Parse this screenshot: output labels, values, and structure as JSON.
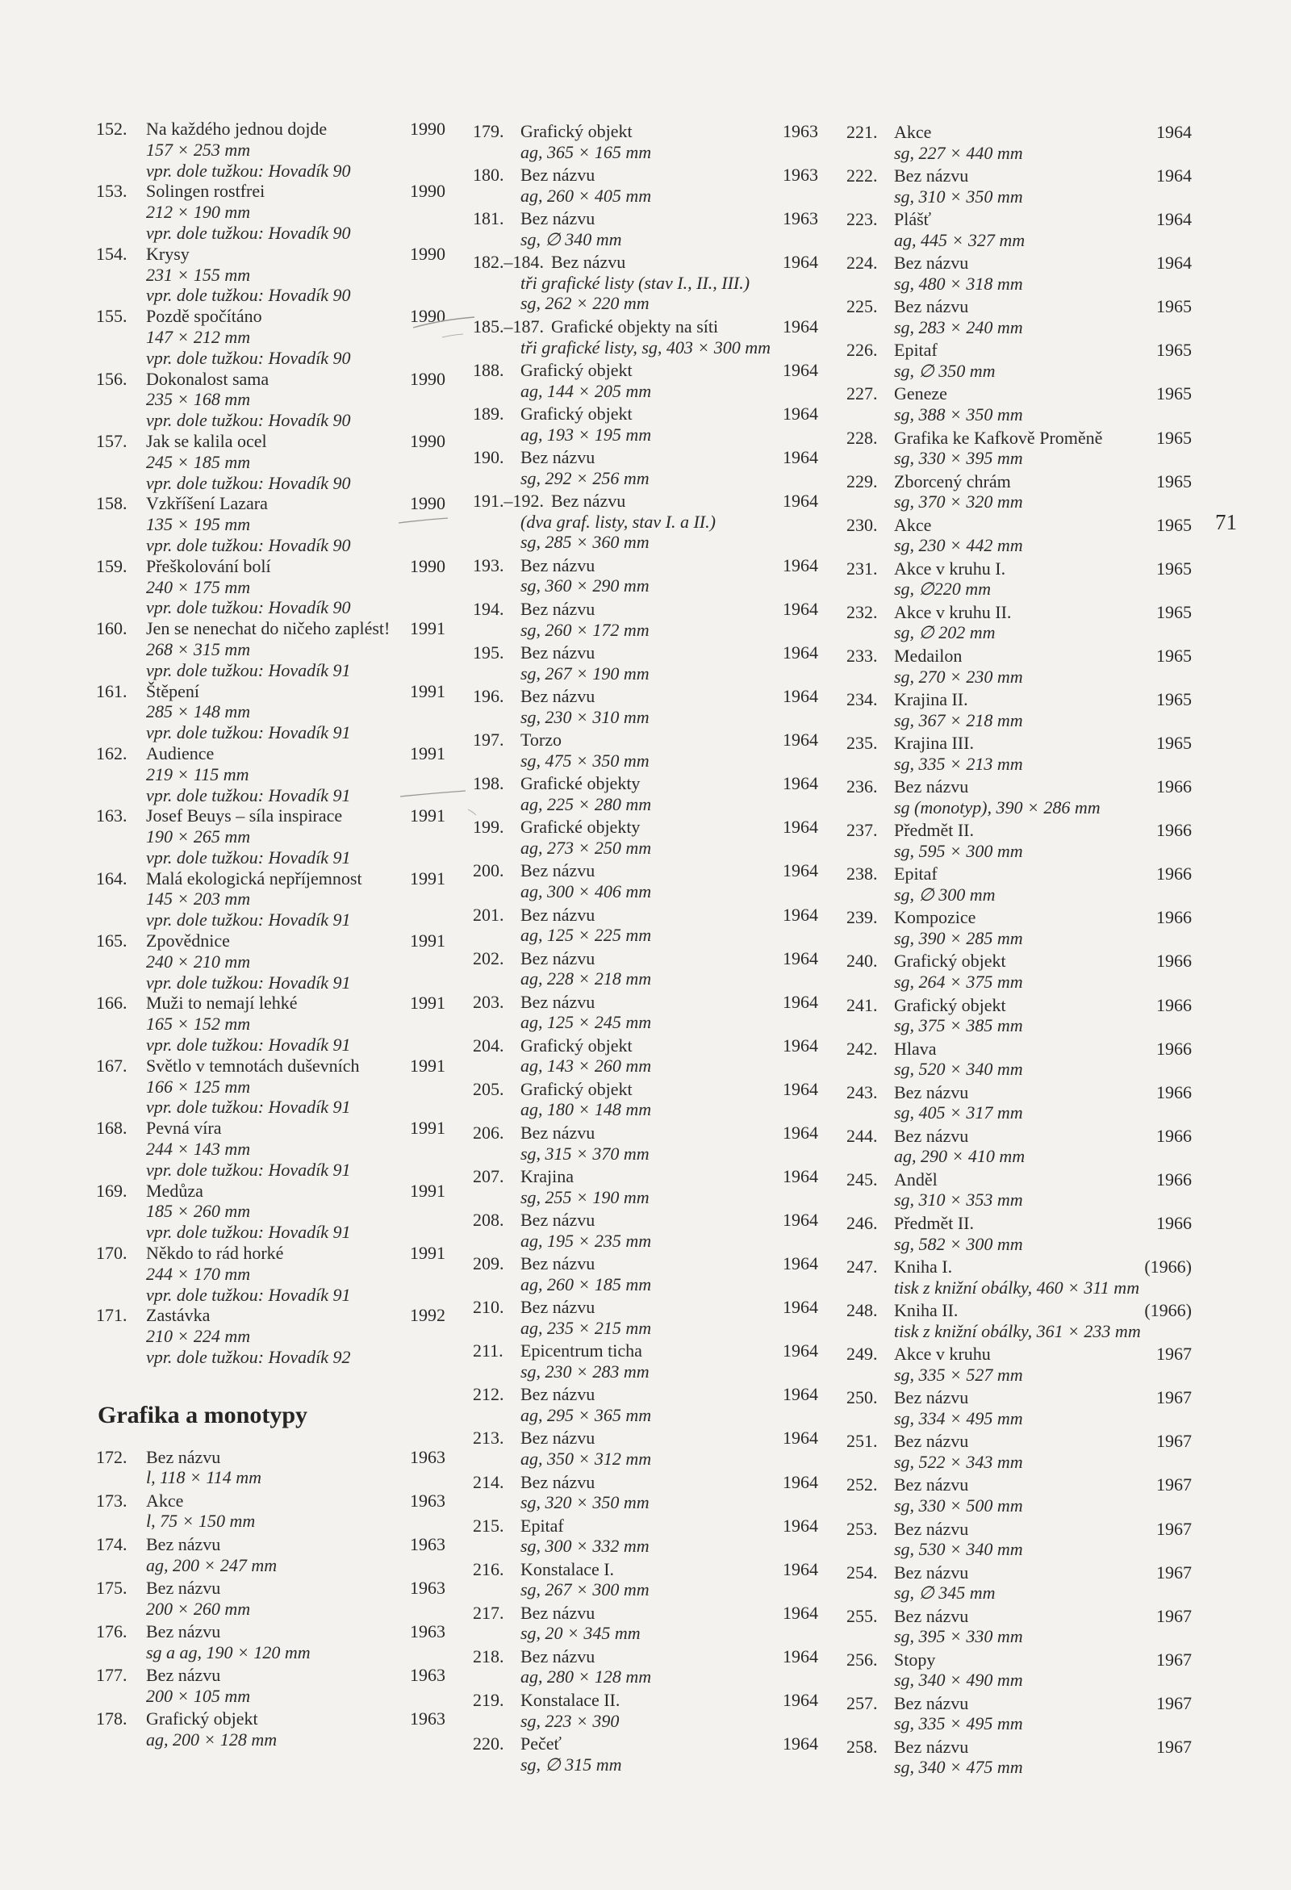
{
  "page_number": "71",
  "columns": [
    {
      "items": [
        {
          "num": "152.",
          "title": "Na každého jednou dojde",
          "year": "1990",
          "lines": [
            "157 × 253 mm",
            "vpr. dole tužkou: Hovadík 90"
          ]
        },
        {
          "num": "153.",
          "title": "Solingen rostfrei",
          "year": "1990",
          "lines": [
            "212 × 190 mm",
            "vpr. dole tužkou: Hovadík 90"
          ]
        },
        {
          "num": "154.",
          "title": "Krysy",
          "year": "1990",
          "lines": [
            "231 × 155 mm",
            "vpr. dole tužkou: Hovadík 90"
          ]
        },
        {
          "num": "155.",
          "title": "Pozdě spočítáno",
          "year": "1990",
          "lines": [
            "147 × 212 mm",
            "vpr. dole tužkou: Hovadík 90"
          ]
        },
        {
          "num": "156.",
          "title": "Dokonalost sama",
          "year": "1990",
          "lines": [
            "235 × 168 mm",
            "vpr. dole tužkou: Hovadík 90"
          ]
        },
        {
          "num": "157.",
          "title": "Jak se kalila ocel",
          "year": "1990",
          "lines": [
            "245 × 185 mm",
            "vpr. dole tužkou: Hovadík 90"
          ]
        },
        {
          "num": "158.",
          "title": "Vzkříšení Lazara",
          "year": "1990",
          "lines": [
            "135 × 195 mm",
            "vpr. dole tužkou: Hovadík 90"
          ]
        },
        {
          "num": "159.",
          "title": "Přeškolování bolí",
          "year": "1990",
          "lines": [
            "240 × 175 mm",
            "vpr. dole tužkou: Hovadík 90"
          ]
        },
        {
          "num": "160.",
          "title": "Jen se nenechat do ničeho zaplést!",
          "year": "1991",
          "lines": [
            "268 × 315 mm",
            "vpr. dole tužkou: Hovadík 91"
          ]
        },
        {
          "num": "161.",
          "title": "Štěpení",
          "year": "1991",
          "lines": [
            "285 × 148 mm",
            "vpr. dole tužkou: Hovadík 91"
          ]
        },
        {
          "num": "162.",
          "title": "Audience",
          "year": "1991",
          "lines": [
            "219 × 115 mm",
            "vpr. dole tužkou: Hovadík 91"
          ]
        },
        {
          "num": "163.",
          "title": "Josef Beuys – síla inspirace",
          "year": "1991",
          "lines": [
            "190 × 265 mm",
            "vpr. dole tužkou: Hovadík 91"
          ]
        },
        {
          "num": "164.",
          "title": "Malá ekologická nepříjemnost",
          "year": "1991",
          "lines": [
            "145 × 203 mm",
            "vpr. dole tužkou: Hovadík 91"
          ]
        },
        {
          "num": "165.",
          "title": "Zpovědnice",
          "year": "1991",
          "lines": [
            "240 × 210 mm",
            "vpr. dole tužkou: Hovadík 91"
          ]
        },
        {
          "num": "166.",
          "title": "Muži to nemají lehké",
          "year": "1991",
          "lines": [
            "165 × 152 mm",
            "vpr. dole tužkou: Hovadík 91"
          ]
        },
        {
          "num": "167.",
          "title": "Světlo v temnotách duševních",
          "year": "1991",
          "lines": [
            "166 × 125 mm",
            "vpr. dole tužkou: Hovadík 91"
          ]
        },
        {
          "num": "168.",
          "title": "Pevná víra",
          "year": "1991",
          "lines": [
            "244 × 143 mm",
            "vpr. dole tužkou: Hovadík 91"
          ]
        },
        {
          "num": "169.",
          "title": "Medůza",
          "year": "1991",
          "lines": [
            "185 × 260 mm",
            "vpr. dole tužkou: Hovadík 91"
          ]
        },
        {
          "num": "170.",
          "title": "Někdo to rád horké",
          "year": "1991",
          "lines": [
            "244 × 170 mm",
            "vpr. dole tužkou: Hovadík 91"
          ]
        },
        {
          "num": "171.",
          "title": "Zastávka",
          "year": "1992",
          "lines": [
            "210 × 224 mm",
            "vpr. dole tužkou: Hovadík 92"
          ]
        },
        {
          "heading": "Grafika a monotypy"
        },
        {
          "num": "172.",
          "title": "Bez názvu",
          "year": "1963",
          "lines": [
            "l, 118 × 114 mm"
          ]
        },
        {
          "num": "173.",
          "title": "Akce",
          "year": "1963",
          "lines": [
            "l, 75 × 150 mm"
          ]
        },
        {
          "num": "174.",
          "title": "Bez názvu",
          "year": "1963",
          "lines": [
            "ag, 200 × 247 mm"
          ]
        },
        {
          "num": "175.",
          "title": "Bez názvu",
          "year": "1963",
          "lines": [
            "200 × 260 mm"
          ]
        },
        {
          "num": "176.",
          "title": "Bez názvu",
          "year": "1963",
          "lines": [
            "sg a ag, 190 × 120 mm"
          ]
        },
        {
          "num": "177.",
          "title": "Bez názvu",
          "year": "1963",
          "lines": [
            "200 × 105 mm"
          ]
        },
        {
          "num": "178.",
          "title": "Grafický objekt",
          "year": "1963",
          "lines": [
            "ag, 200 × 128 mm"
          ]
        }
      ]
    },
    {
      "items": [
        {
          "num": "179.",
          "title": "Grafický objekt",
          "year": "1963",
          "lines": [
            "ag, 365 × 165 mm"
          ]
        },
        {
          "num": "180.",
          "title": "Bez názvu",
          "year": "1963",
          "lines": [
            "ag, 260 × 405 mm"
          ]
        },
        {
          "num": "181.",
          "title": "Bez názvu",
          "year": "1963",
          "lines": [
            "sg, ∅ 340 mm"
          ]
        },
        {
          "num": "182.–184.",
          "title": "Bez názvu",
          "year": "1964",
          "lines": [
            "tři grafické listy (stav I., II., III.)",
            "sg, 262 × 220 mm"
          ]
        },
        {
          "num": "185.–187.",
          "title": "Grafické objekty na síti",
          "year": "1964",
          "lines": [
            "tři grafické listy, sg, 403 × 300 mm"
          ]
        },
        {
          "num": "188.",
          "title": "Grafický objekt",
          "year": "1964",
          "lines": [
            "ag, 144 × 205 mm"
          ]
        },
        {
          "num": "189.",
          "title": "Grafický objekt",
          "year": "1964",
          "lines": [
            "ag, 193 × 195 mm"
          ]
        },
        {
          "num": "190.",
          "title": "Bez názvu",
          "year": "1964",
          "lines": [
            "sg, 292 × 256 mm"
          ]
        },
        {
          "num": "191.–192.",
          "title": "Bez názvu",
          "year": "1964",
          "lines": [
            "(dva graf. listy, stav I. a II.)",
            "sg, 285 × 360 mm"
          ]
        },
        {
          "num": "193.",
          "title": "Bez názvu",
          "year": "1964",
          "lines": [
            "sg, 360 × 290 mm"
          ]
        },
        {
          "num": "194.",
          "title": "Bez názvu",
          "year": "1964",
          "lines": [
            "sg, 260 × 172 mm"
          ]
        },
        {
          "num": "195.",
          "title": "Bez názvu",
          "year": "1964",
          "lines": [
            "sg, 267 × 190 mm"
          ]
        },
        {
          "num": "196.",
          "title": "Bez názvu",
          "year": "1964",
          "lines": [
            "sg, 230 × 310 mm"
          ]
        },
        {
          "num": "197.",
          "title": "Torzo",
          "year": "1964",
          "lines": [
            "sg, 475 × 350 mm"
          ]
        },
        {
          "num": "198.",
          "title": "Grafické objekty",
          "year": "1964",
          "lines": [
            "ag, 225 × 280 mm"
          ]
        },
        {
          "num": "199.",
          "title": "Grafické objekty",
          "year": "1964",
          "lines": [
            "ag, 273 × 250 mm"
          ]
        },
        {
          "num": "200.",
          "title": "Bez názvu",
          "year": "1964",
          "lines": [
            "ag, 300 × 406 mm"
          ]
        },
        {
          "num": "201.",
          "title": "Bez názvu",
          "year": "1964",
          "lines": [
            "ag, 125 × 225 mm"
          ]
        },
        {
          "num": "202.",
          "title": "Bez názvu",
          "year": "1964",
          "lines": [
            "ag, 228 × 218 mm"
          ]
        },
        {
          "num": "203.",
          "title": "Bez názvu",
          "year": "1964",
          "lines": [
            "ag, 125 × 245 mm"
          ]
        },
        {
          "num": "204.",
          "title": "Grafický objekt",
          "year": "1964",
          "lines": [
            "ag, 143 × 260 mm"
          ]
        },
        {
          "num": "205.",
          "title": "Grafický objekt",
          "year": "1964",
          "lines": [
            "ag, 180 × 148 mm"
          ]
        },
        {
          "num": "206.",
          "title": "Bez názvu",
          "year": "1964",
          "lines": [
            "sg, 315 × 370 mm"
          ]
        },
        {
          "num": "207.",
          "title": "Krajina",
          "year": "1964",
          "lines": [
            "sg, 255 × 190 mm"
          ]
        },
        {
          "num": "208.",
          "title": "Bez názvu",
          "year": "1964",
          "lines": [
            "ag, 195 × 235 mm"
          ]
        },
        {
          "num": "209.",
          "title": "Bez názvu",
          "year": "1964",
          "lines": [
            "ag, 260 × 185 mm"
          ]
        },
        {
          "num": "210.",
          "title": "Bez názvu",
          "year": "1964",
          "lines": [
            "ag, 235 × 215 mm"
          ]
        },
        {
          "num": "211.",
          "title": "Epicentrum ticha",
          "year": "1964",
          "lines": [
            "sg, 230 × 283 mm"
          ]
        },
        {
          "num": "212.",
          "title": "Bez názvu",
          "year": "1964",
          "lines": [
            "ag, 295 × 365 mm"
          ]
        },
        {
          "num": "213.",
          "title": "Bez názvu",
          "year": "1964",
          "lines": [
            "ag, 350 × 312 mm"
          ]
        },
        {
          "num": "214.",
          "title": "Bez názvu",
          "year": "1964",
          "lines": [
            "sg, 320 × 350 mm"
          ]
        },
        {
          "num": "215.",
          "title": "Epitaf",
          "year": "1964",
          "lines": [
            "sg, 300 × 332 mm"
          ]
        },
        {
          "num": "216.",
          "title": "Konstalace I.",
          "year": "1964",
          "lines": [
            "sg, 267 × 300 mm"
          ]
        },
        {
          "num": "217.",
          "title": "Bez názvu",
          "year": "1964",
          "lines": [
            "sg, 20 × 345 mm"
          ]
        },
        {
          "num": "218.",
          "title": "Bez názvu",
          "year": "1964",
          "lines": [
            "ag, 280 × 128 mm"
          ]
        },
        {
          "num": "219.",
          "title": "Konstalace II.",
          "year": "1964",
          "lines": [
            "sg, 223 × 390"
          ]
        },
        {
          "num": "220.",
          "title": "Pečeť",
          "year": "1964",
          "lines": [
            "sg, ∅ 315 mm"
          ]
        }
      ]
    },
    {
      "items": [
        {
          "num": "221.",
          "title": "Akce",
          "year": "1964",
          "lines": [
            "sg, 227 × 440 mm"
          ]
        },
        {
          "num": "222.",
          "title": "Bez názvu",
          "year": "1964",
          "lines": [
            "sg, 310 × 350 mm"
          ]
        },
        {
          "num": "223.",
          "title": "Plášť",
          "year": "1964",
          "lines": [
            "ag, 445 × 327 mm"
          ]
        },
        {
          "num": "224.",
          "title": "Bez názvu",
          "year": "1964",
          "lines": [
            "sg, 480 × 318 mm"
          ]
        },
        {
          "num": "225.",
          "title": "Bez názvu",
          "year": "1965",
          "lines": [
            "sg, 283 × 240 mm"
          ]
        },
        {
          "num": "226.",
          "title": "Epitaf",
          "year": "1965",
          "lines": [
            "sg, ∅ 350 mm"
          ]
        },
        {
          "num": "227.",
          "title": "Geneze",
          "year": "1965",
          "lines": [
            "sg, 388 × 350 mm"
          ]
        },
        {
          "num": "228.",
          "title": "Grafika ke Kafkově Proměně",
          "year": "1965",
          "lines": [
            "sg, 330 × 395 mm"
          ]
        },
        {
          "num": "229.",
          "title": "Zborcený chrám",
          "year": "1965",
          "lines": [
            "sg, 370 × 320 mm"
          ]
        },
        {
          "num": "230.",
          "title": "Akce",
          "year": "1965",
          "lines": [
            "sg, 230 × 442 mm"
          ]
        },
        {
          "num": "231.",
          "title": "Akce v kruhu I.",
          "year": "1965",
          "lines": [
            "sg, ∅220 mm"
          ]
        },
        {
          "num": "232.",
          "title": "Akce v kruhu II.",
          "year": "1965",
          "lines": [
            "sg, ∅ 202 mm"
          ]
        },
        {
          "num": "233.",
          "title": "Medailon",
          "year": "1965",
          "lines": [
            "sg, 270 × 230 mm"
          ]
        },
        {
          "num": "234.",
          "title": "Krajina II.",
          "year": "1965",
          "lines": [
            "sg, 367 × 218 mm"
          ]
        },
        {
          "num": "235.",
          "title": "Krajina III.",
          "year": "1965",
          "lines": [
            "sg, 335 × 213 mm"
          ]
        },
        {
          "num": "236.",
          "title": "Bez názvu",
          "year": "1966",
          "lines": [
            "sg (monotyp), 390 × 286 mm"
          ]
        },
        {
          "num": "237.",
          "title": "Předmět II.",
          "year": "1966",
          "lines": [
            "sg, 595 × 300 mm"
          ]
        },
        {
          "num": "238.",
          "title": "Epitaf",
          "year": "1966",
          "lines": [
            "sg, ∅ 300 mm"
          ]
        },
        {
          "num": "239.",
          "title": "Kompozice",
          "year": "1966",
          "lines": [
            "sg, 390 × 285 mm"
          ]
        },
        {
          "num": "240.",
          "title": "Grafický objekt",
          "year": "1966",
          "lines": [
            "sg, 264 × 375 mm"
          ]
        },
        {
          "num": "241.",
          "title": "Grafický objekt",
          "year": "1966",
          "lines": [
            "sg, 375 × 385 mm"
          ]
        },
        {
          "num": "242.",
          "title": "Hlava",
          "year": "1966",
          "lines": [
            "sg, 520 × 340 mm"
          ]
        },
        {
          "num": "243.",
          "title": "Bez názvu",
          "year": "1966",
          "lines": [
            "sg, 405 × 317 mm"
          ]
        },
        {
          "num": "244.",
          "title": "Bez názvu",
          "year": "1966",
          "lines": [
            "ag, 290 × 410 mm"
          ]
        },
        {
          "num": "245.",
          "title": "Anděl",
          "year": "1966",
          "lines": [
            "sg, 310 × 353 mm"
          ]
        },
        {
          "num": "246.",
          "title": "Předmět II.",
          "year": "1966",
          "lines": [
            "sg, 582 × 300 mm"
          ]
        },
        {
          "num": "247.",
          "title": "Kniha I.",
          "year": "(1966)",
          "lines": [
            "tisk z knižní obálky, 460 × 311 mm"
          ]
        },
        {
          "num": "248.",
          "title": "Kniha II.",
          "year": "(1966)",
          "lines": [
            "tisk z knižní obálky, 361 × 233 mm"
          ]
        },
        {
          "num": "249.",
          "title": "Akce v kruhu",
          "year": "1967",
          "lines": [
            "sg, 335 × 527 mm"
          ]
        },
        {
          "num": "250.",
          "title": "Bez názvu",
          "year": "1967",
          "lines": [
            "sg, 334 × 495 mm"
          ]
        },
        {
          "num": "251.",
          "title": "Bez názvu",
          "year": "1967",
          "lines": [
            "sg, 522 × 343 mm"
          ]
        },
        {
          "num": "252.",
          "title": "Bez názvu",
          "year": "1967",
          "lines": [
            "sg, 330 × 500 mm"
          ]
        },
        {
          "num": "253.",
          "title": "Bez názvu",
          "year": "1967",
          "lines": [
            "sg, 530 × 340 mm"
          ]
        },
        {
          "num": "254.",
          "title": "Bez názvu",
          "year": "1967",
          "lines": [
            "sg, ∅ 345 mm"
          ]
        },
        {
          "num": "255.",
          "title": "Bez názvu",
          "year": "1967",
          "lines": [
            "sg, 395 × 330 mm"
          ]
        },
        {
          "num": "256.",
          "title": "Stopy",
          "year": "1967",
          "lines": [
            "sg, 340 × 490 mm"
          ]
        },
        {
          "num": "257.",
          "title": "Bez názvu",
          "year": "1967",
          "lines": [
            "sg, 335 × 495 mm"
          ]
        },
        {
          "num": "258.",
          "title": "Bez názvu",
          "year": "1967",
          "lines": [
            "sg, 340 × 475 mm"
          ]
        }
      ]
    }
  ]
}
